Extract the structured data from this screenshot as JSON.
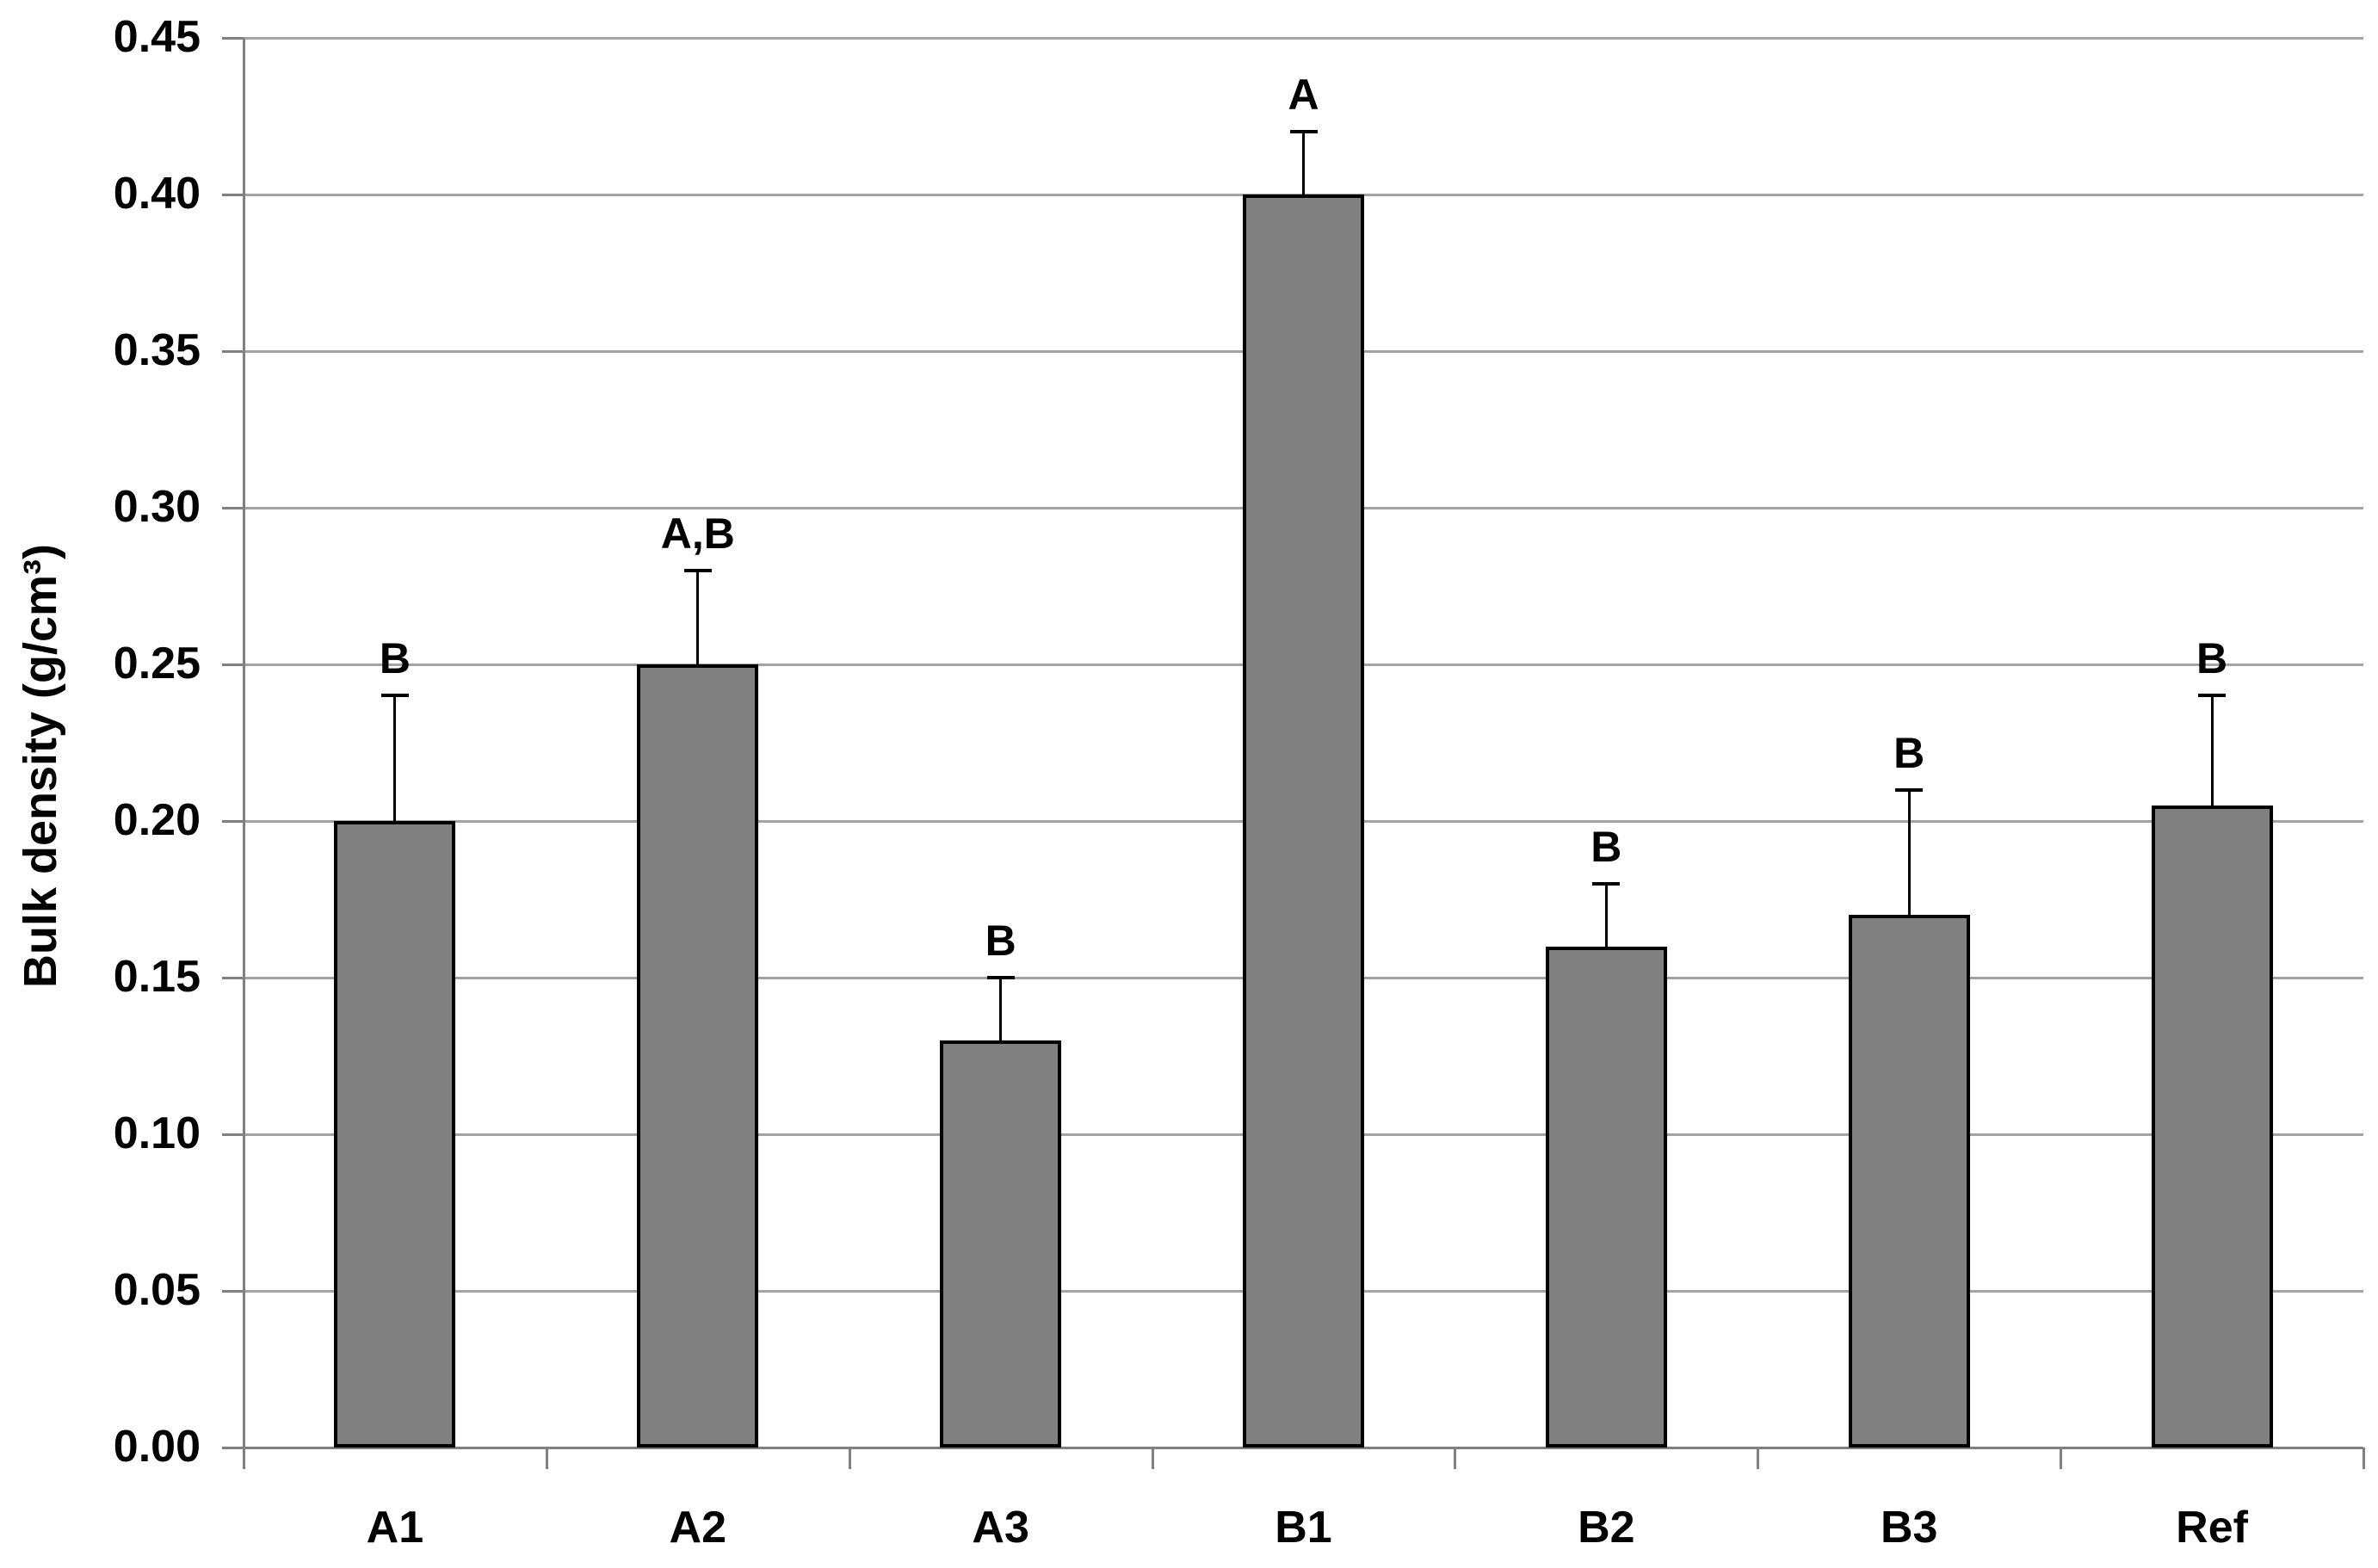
{
  "chart_data": {
    "type": "bar",
    "categories": [
      "A1",
      "A2",
      "A3",
      "B1",
      "B2",
      "B3",
      "Ref"
    ],
    "values": [
      0.2,
      0.25,
      0.13,
      0.4,
      0.16,
      0.17,
      0.205
    ],
    "error_upper": [
      0.04,
      0.03,
      0.02,
      0.02,
      0.02,
      0.04,
      0.035
    ],
    "error_bar_tops": [
      0.24,
      0.28,
      0.15,
      0.42,
      0.18,
      0.21,
      0.24
    ],
    "sig_labels": [
      "B",
      "A,B",
      "B",
      "A",
      "B",
      "B",
      "B"
    ],
    "title": "",
    "xlabel": "",
    "ylabel": "Bulk density (g/cm³)",
    "ylim": [
      0.0,
      0.45
    ],
    "ytick_step": 0.05,
    "ytick_labels": [
      "0.00",
      "0.05",
      "0.10",
      "0.15",
      "0.20",
      "0.25",
      "0.30",
      "0.35",
      "0.40",
      "0.45"
    ],
    "grid": true,
    "legend": "none",
    "colors": {
      "bar_fill": "#808080",
      "bar_border": "#000000",
      "gridline": "#a3a3a3",
      "axis": "#808080",
      "error_bar": "#000000",
      "text": "#000000"
    }
  }
}
